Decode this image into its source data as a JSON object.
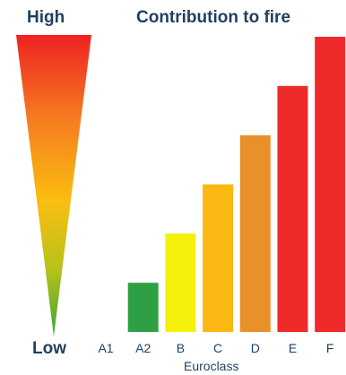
{
  "scale": {
    "high_label": "High",
    "low_label": "Low"
  },
  "chart_data": {
    "type": "bar",
    "title": "Contribution to fire",
    "xlabel": "Euroclass",
    "ylabel": "",
    "categories": [
      "A1",
      "A2",
      "B",
      "C",
      "D",
      "E",
      "F"
    ],
    "values": [
      0,
      1,
      2,
      3,
      4,
      5,
      6
    ],
    "colors": [
      "#ffffff",
      "#2ea043",
      "#f5f00c",
      "#fbb812",
      "#e8902a",
      "#ee2a2a",
      "#ee2a2a"
    ],
    "ylim": [
      0,
      6
    ],
    "grid": false,
    "legend": "none"
  }
}
